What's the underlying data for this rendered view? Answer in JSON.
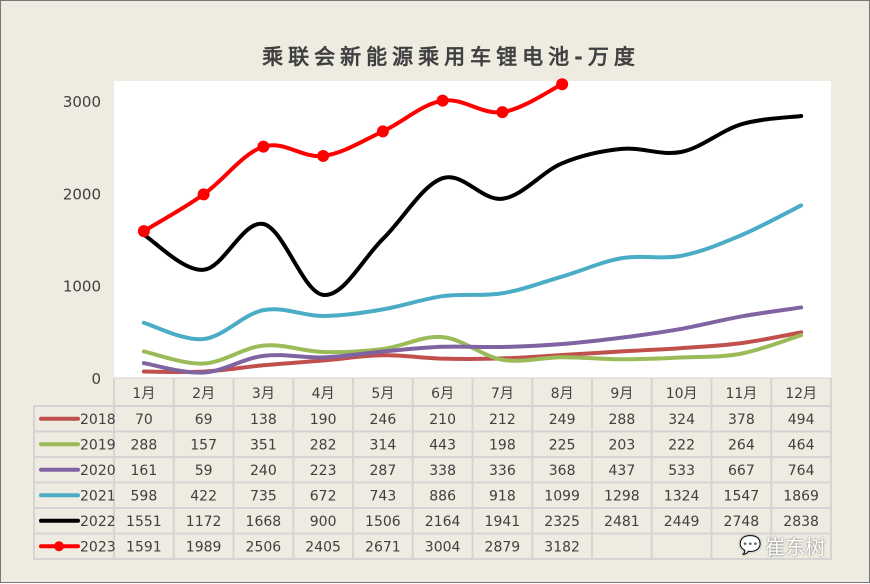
{
  "chart_data": {
    "type": "line",
    "title": "乘联会新能源乘用车锂电池-万度",
    "categories": [
      "1月",
      "2月",
      "3月",
      "4月",
      "5月",
      "6月",
      "7月",
      "8月",
      "9月",
      "10月",
      "11月",
      "12月"
    ],
    "ylim": [
      0,
      3000
    ],
    "yticks": [
      0,
      1000,
      2000,
      3000
    ],
    "grid": false,
    "legend": "data-table",
    "series": [
      {
        "name": "2018",
        "color": "#c0504d",
        "values": [
          70,
          69,
          138,
          190,
          246,
          210,
          212,
          249,
          288,
          324,
          378,
          494
        ]
      },
      {
        "name": "2019",
        "color": "#9bbb59",
        "values": [
          288,
          157,
          351,
          282,
          314,
          443,
          198,
          225,
          203,
          222,
          264,
          464
        ]
      },
      {
        "name": "2020",
        "color": "#8064a2",
        "values": [
          161,
          59,
          240,
          223,
          287,
          338,
          336,
          368,
          437,
          533,
          667,
          764
        ]
      },
      {
        "name": "2021",
        "color": "#4bacc6",
        "values": [
          598,
          422,
          735,
          672,
          743,
          886,
          918,
          1099,
          1298,
          1324,
          1547,
          1869
        ]
      },
      {
        "name": "2022",
        "color": "#000000",
        "values": [
          1551,
          1172,
          1668,
          900,
          1506,
          2164,
          1941,
          2325,
          2481,
          2449,
          2748,
          2838
        ]
      },
      {
        "name": "2023",
        "color": "#ff0000",
        "markers": true,
        "values": [
          1591,
          1989,
          2506,
          2405,
          2671,
          3004,
          2879,
          3182,
          null,
          null,
          null,
          null
        ]
      }
    ]
  },
  "watermark": "崔东树"
}
